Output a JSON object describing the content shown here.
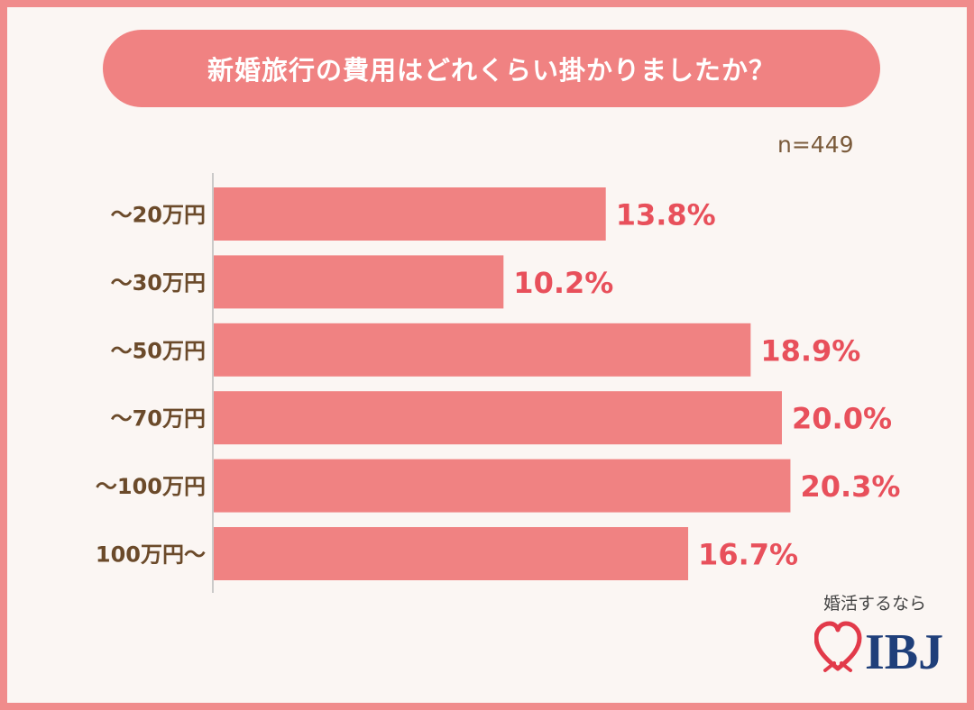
{
  "title": "新婚旅行の費用はどれくらい掛かりましたか？",
  "sample_size": "n=449",
  "brand": {
    "tagline": "婚活するなら",
    "name": "IBJ"
  },
  "colors": {
    "bar": "#f08282",
    "value_label": "#e8505b",
    "category_label": "#6b4a2a",
    "frame": "#f08c8c",
    "brand_navy": "#1f3f7a",
    "brand_heart": "#e23a4a"
  },
  "chart_data": {
    "type": "bar",
    "orientation": "horizontal",
    "categories": [
      "～20万円",
      "～30万円",
      "～50万円",
      "～70万円",
      "～100万円",
      "100万円～"
    ],
    "values": [
      13.8,
      10.2,
      18.9,
      20.0,
      20.3,
      16.7
    ],
    "value_labels": [
      "13.8%",
      "10.2%",
      "18.9%",
      "20.0%",
      "20.3%",
      "16.7%"
    ],
    "unit": "%",
    "grid": false,
    "legend": "none"
  }
}
